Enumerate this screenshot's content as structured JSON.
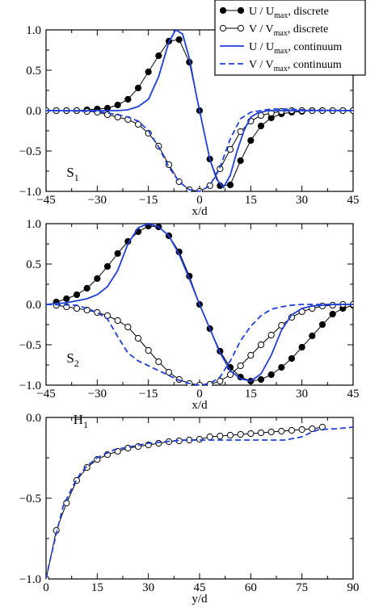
{
  "colors": {
    "continuum": "#1f3fd6",
    "discrete": "#000000"
  },
  "legend": {
    "entries": [
      {
        "id": "u_discrete",
        "main": "U / U",
        "sub": "max",
        "suffix": ", discrete",
        "marker": "filled",
        "line": "solid-black"
      },
      {
        "id": "v_discrete",
        "main": "V / V",
        "sub": "max",
        "suffix": ", discrete",
        "marker": "open",
        "line": "solid-black"
      },
      {
        "id": "u_continuum",
        "main": "U / U",
        "sub": "max",
        "suffix": ", continuum",
        "marker": "none",
        "line": "solid-blue"
      },
      {
        "id": "v_continuum",
        "main": "V / V",
        "sub": "max",
        "suffix": ", continuum",
        "marker": "none",
        "line": "dashed-blue"
      }
    ]
  },
  "chart_data": [
    {
      "type": "line",
      "label": "S",
      "label_sub": "1",
      "xlabel": "x/d",
      "xlim": [
        -45,
        45
      ],
      "ylim": [
        -1.0,
        1.0
      ],
      "xticks": [
        -45,
        -30,
        -15,
        0,
        15,
        30,
        45
      ],
      "yticks": [
        "1.0",
        "0.5",
        "0.0",
        "-0.5",
        "-1.0"
      ],
      "ytick_values": [
        1.0,
        0.5,
        0.0,
        -0.5,
        -1.0
      ],
      "series": [
        {
          "name": "U / Umax, discrete",
          "style": "filled",
          "x": [
            -45,
            -42,
            -39,
            -36,
            -33,
            -30,
            -27,
            -24,
            -21,
            -18,
            -15,
            -12,
            -9,
            -6,
            -3,
            0,
            3,
            6,
            9,
            12,
            15,
            18,
            21,
            24,
            27,
            30,
            33,
            36,
            39,
            42,
            45
          ],
          "y": [
            0,
            0,
            0,
            0,
            0.01,
            0.02,
            0.03,
            0.07,
            0.14,
            0.28,
            0.48,
            0.68,
            0.86,
            0.88,
            0.6,
            0.0,
            -0.6,
            -0.93,
            -0.92,
            -0.62,
            -0.37,
            -0.19,
            -0.09,
            -0.04,
            -0.02,
            -0.01,
            0,
            0,
            0,
            0,
            0
          ]
        },
        {
          "name": "V / Vmax, discrete",
          "style": "open",
          "x": [
            -45,
            -42,
            -39,
            -36,
            -33,
            -30,
            -27,
            -24,
            -21,
            -18,
            -15,
            -12,
            -9,
            -6,
            -3,
            0,
            3,
            6,
            9,
            12,
            15,
            18,
            21,
            24,
            27,
            30,
            33,
            36,
            39,
            42,
            45
          ],
          "y": [
            0,
            0,
            0,
            0,
            -0.01,
            -0.02,
            -0.05,
            -0.08,
            -0.11,
            -0.17,
            -0.28,
            -0.44,
            -0.67,
            -0.88,
            -0.98,
            -1.0,
            -0.93,
            -0.72,
            -0.48,
            -0.26,
            -0.13,
            -0.06,
            -0.03,
            -0.01,
            0,
            0,
            0,
            0,
            0,
            0,
            0
          ]
        },
        {
          "name": "U / Umax, continuum",
          "style": "solid",
          "x": [
            -45,
            -30,
            -24,
            -21,
            -18,
            -15,
            -12,
            -9,
            -7,
            -5,
            -3,
            -1,
            0,
            1,
            3,
            5,
            7,
            9,
            11,
            13,
            15,
            17,
            20,
            25,
            30,
            45
          ],
          "y": [
            0,
            0,
            0,
            0.01,
            0.05,
            0.14,
            0.42,
            0.85,
            1.0,
            0.95,
            0.65,
            0.2,
            0,
            -0.2,
            -0.6,
            -0.85,
            -0.95,
            -0.8,
            -0.5,
            -0.25,
            -0.08,
            -0.03,
            0,
            0,
            0,
            0
          ]
        },
        {
          "name": "V / Vmax, continuum",
          "style": "dashed",
          "x": [
            -45,
            -30,
            -24,
            -21,
            -18,
            -15,
            -12,
            -9,
            -6,
            -3,
            0,
            3,
            6,
            9,
            12,
            15,
            18,
            21,
            25,
            30,
            45
          ],
          "y": [
            0,
            -0.01,
            -0.05,
            -0.08,
            -0.13,
            -0.25,
            -0.45,
            -0.7,
            -0.88,
            -0.98,
            -1.0,
            -0.93,
            -0.7,
            -0.35,
            -0.1,
            -0.02,
            0,
            0.02,
            0.02,
            0.01,
            0
          ]
        }
      ]
    },
    {
      "type": "line",
      "label": "S",
      "label_sub": "2",
      "xlabel": "x/d",
      "xlim": [
        -45,
        45
      ],
      "ylim": [
        -1.0,
        1.0
      ],
      "xticks": [
        -45,
        -30,
        -15,
        0,
        15,
        30,
        45
      ],
      "yticks": [
        "1.0",
        "0.5",
        "0.0",
        "-0.5",
        "-1.0"
      ],
      "ytick_values": [
        1.0,
        0.5,
        0.0,
        -0.5,
        -1.0
      ],
      "series": [
        {
          "name": "U / Umax, discrete",
          "style": "filled",
          "x": [
            -42,
            -39,
            -36,
            -33,
            -30,
            -27,
            -24,
            -21,
            -18,
            -15,
            -12,
            -9,
            -6,
            -3,
            0,
            3,
            6,
            9,
            12,
            15,
            18,
            21,
            24,
            27,
            30,
            33,
            36,
            39,
            42,
            45
          ],
          "y": [
            0.03,
            0.07,
            0.12,
            0.2,
            0.32,
            0.47,
            0.63,
            0.78,
            0.9,
            0.97,
            0.96,
            0.85,
            0.65,
            0.35,
            0.0,
            -0.3,
            -0.58,
            -0.78,
            -0.9,
            -0.95,
            -0.93,
            -0.87,
            -0.78,
            -0.67,
            -0.53,
            -0.39,
            -0.25,
            -0.12,
            -0.05,
            -0.01
          ]
        },
        {
          "name": "V / Vmax, discrete",
          "style": "open",
          "x": [
            -42,
            -39,
            -36,
            -33,
            -30,
            -27,
            -24,
            -21,
            -18,
            -15,
            -12,
            -9,
            -6,
            -3,
            0,
            3,
            6,
            9,
            12,
            15,
            18,
            21,
            24,
            27,
            30,
            33,
            36,
            39,
            42,
            45
          ],
          "y": [
            -0.01,
            -0.03,
            -0.05,
            -0.07,
            -0.1,
            -0.14,
            -0.2,
            -0.28,
            -0.42,
            -0.57,
            -0.71,
            -0.84,
            -0.93,
            -0.98,
            -1.0,
            -0.99,
            -0.95,
            -0.87,
            -0.76,
            -0.63,
            -0.5,
            -0.38,
            -0.26,
            -0.16,
            -0.09,
            -0.05,
            -0.02,
            -0.01,
            0,
            0
          ]
        },
        {
          "name": "U / Umax, continuum",
          "style": "solid",
          "x": [
            -45,
            -39,
            -33,
            -30,
            -27,
            -24,
            -21,
            -18,
            -15,
            -12,
            -9,
            -6,
            -3,
            0,
            3,
            6,
            9,
            12,
            15,
            18,
            21,
            24,
            27,
            30,
            33,
            36,
            39,
            42,
            45
          ],
          "y": [
            0,
            0.02,
            0.07,
            0.12,
            0.22,
            0.42,
            0.75,
            0.95,
            1.0,
            0.96,
            0.85,
            0.62,
            0.32,
            0.0,
            -0.3,
            -0.6,
            -0.82,
            -0.92,
            -0.95,
            -0.86,
            -0.63,
            -0.32,
            -0.13,
            -0.05,
            -0.02,
            -0.01,
            0,
            0,
            0
          ]
        },
        {
          "name": "V / Vmax, continuum",
          "style": "dashed",
          "x": [
            -45,
            -36,
            -33,
            -30,
            -27,
            -24,
            -21,
            -18,
            -15,
            -12,
            -9,
            -6,
            -3,
            0,
            3,
            6,
            9,
            12,
            15,
            18,
            21,
            24,
            27,
            30,
            33,
            36,
            39,
            42,
            45
          ],
          "y": [
            0,
            -0.01,
            -0.05,
            -0.1,
            -0.18,
            -0.4,
            -0.6,
            -0.7,
            -0.76,
            -0.82,
            -0.88,
            -0.94,
            -0.98,
            -1.0,
            -0.98,
            -0.9,
            -0.7,
            -0.45,
            -0.27,
            -0.14,
            -0.06,
            -0.03,
            -0.01,
            0,
            0,
            0,
            0,
            0,
            0
          ]
        }
      ]
    },
    {
      "type": "line",
      "label": "H",
      "label_sub": "1",
      "xlabel": "y/d",
      "xlim": [
        0,
        90
      ],
      "ylim": [
        -1.0,
        0.0
      ],
      "xticks": [
        0,
        15,
        30,
        45,
        60,
        75,
        90
      ],
      "yticks": [
        "0.0",
        "-0.5",
        "-1.0"
      ],
      "ytick_values": [
        0.0,
        -0.5,
        -1.0
      ],
      "series": [
        {
          "name": "V / Vmax, discrete",
          "style": "open",
          "x": [
            0,
            3,
            6,
            9,
            12,
            15,
            18,
            21,
            24,
            27,
            30,
            33,
            36,
            39,
            42,
            45,
            48,
            51,
            54,
            57,
            60,
            63,
            66,
            69,
            72,
            75,
            78,
            81
          ],
          "y": [
            -1.0,
            -0.7,
            -0.53,
            -0.39,
            -0.31,
            -0.26,
            -0.23,
            -0.21,
            -0.19,
            -0.18,
            -0.17,
            -0.16,
            -0.15,
            -0.145,
            -0.14,
            -0.135,
            -0.12,
            -0.115,
            -0.11,
            -0.105,
            -0.1,
            -0.095,
            -0.09,
            -0.085,
            -0.08,
            -0.075,
            -0.07,
            -0.06
          ]
        },
        {
          "name": "V / Vmax, continuum",
          "style": "dashed",
          "x": [
            0,
            1,
            3,
            5,
            8,
            10,
            12,
            15,
            20,
            25,
            30,
            35,
            40,
            45,
            50,
            55,
            60,
            65,
            70,
            75,
            78,
            80,
            85,
            90
          ],
          "y": [
            -1.0,
            -0.9,
            -0.72,
            -0.55,
            -0.42,
            -0.35,
            -0.3,
            -0.25,
            -0.2,
            -0.18,
            -0.16,
            -0.15,
            -0.14,
            -0.14,
            -0.14,
            -0.14,
            -0.14,
            -0.14,
            -0.14,
            -0.12,
            -0.09,
            -0.075,
            -0.07,
            -0.06
          ]
        }
      ]
    }
  ]
}
